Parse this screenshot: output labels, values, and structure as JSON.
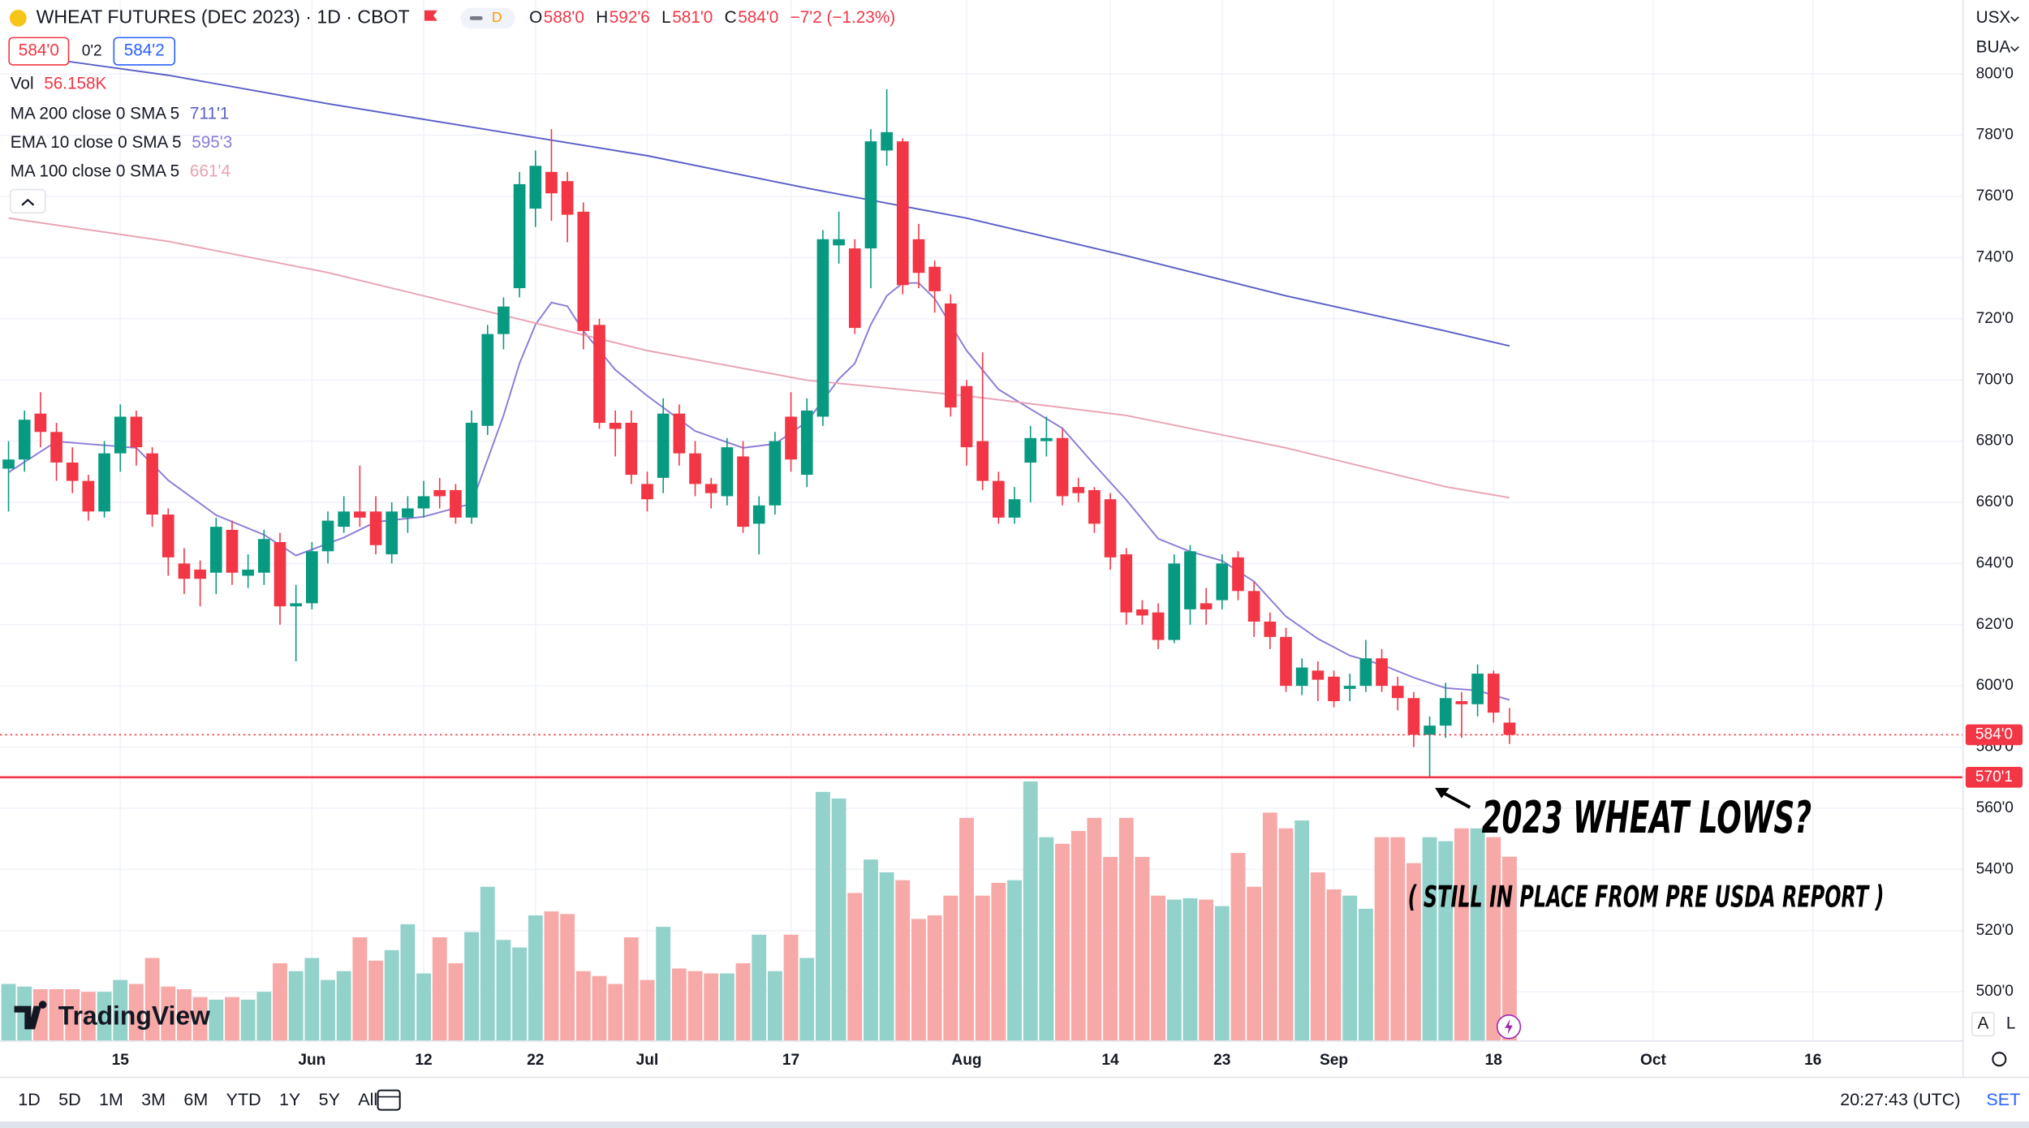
{
  "header": {
    "symbol": "WHEAT FUTURES (DEC 2023) · 1D · CBOT",
    "badge": "D",
    "ohlc": [
      {
        "key": "O",
        "value": "588'0"
      },
      {
        "key": "H",
        "value": "592'6"
      },
      {
        "key": "L",
        "value": "581'0"
      },
      {
        "key": "C",
        "value": "584'0"
      }
    ],
    "change": "−7'2 (−1.23%)",
    "bid": "584'0",
    "spread": "0'2",
    "ask": "584'2"
  },
  "units": [
    "USX",
    "BUA"
  ],
  "chart_data": {
    "type": "candlestick",
    "up_color": "#089981",
    "down_color": "#f23645",
    "ohlc": [
      [
        671,
        680,
        657,
        674
      ],
      [
        674,
        690,
        670,
        687
      ],
      [
        689,
        696,
        678,
        683
      ],
      [
        683,
        686,
        667,
        673
      ],
      [
        673,
        678,
        663,
        667
      ],
      [
        667,
        669,
        654,
        657
      ],
      [
        657,
        680,
        655,
        676
      ],
      [
        676,
        692,
        670,
        688
      ],
      [
        688,
        690,
        672,
        678
      ],
      [
        676,
        678,
        652,
        656
      ],
      [
        656,
        658,
        636,
        642
      ],
      [
        640,
        645,
        630,
        635
      ],
      [
        638,
        641,
        626,
        635
      ],
      [
        637,
        655,
        630,
        652
      ],
      [
        651,
        654,
        633,
        637
      ],
      [
        636,
        643,
        632,
        638
      ],
      [
        637,
        651,
        633,
        648
      ],
      [
        647,
        650,
        620,
        626
      ],
      [
        626,
        633,
        608,
        627
      ],
      [
        627,
        647,
        625,
        644
      ],
      [
        644,
        657,
        640,
        654
      ],
      [
        652,
        662,
        650,
        657
      ],
      [
        657,
        672,
        652,
        655
      ],
      [
        657,
        662,
        643,
        646
      ],
      [
        643,
        660,
        640,
        657
      ],
      [
        655,
        662,
        650,
        658
      ],
      [
        658,
        667,
        655,
        662
      ],
      [
        664,
        668,
        658,
        662
      ],
      [
        664,
        666,
        653,
        655
      ],
      [
        655,
        690,
        653,
        686
      ],
      [
        685,
        718,
        682,
        715
      ],
      [
        715,
        727,
        710,
        724
      ],
      [
        730,
        768,
        727,
        764
      ],
      [
        756,
        775,
        750,
        770
      ],
      [
        768,
        782,
        752,
        761
      ],
      [
        765,
        768,
        745,
        754
      ],
      [
        755,
        758,
        710,
        716
      ],
      [
        718,
        720,
        684,
        686
      ],
      [
        686,
        690,
        675,
        684
      ],
      [
        686,
        690,
        666,
        669
      ],
      [
        666,
        670,
        657,
        661
      ],
      [
        668,
        694,
        663,
        689
      ],
      [
        689,
        692,
        672,
        676
      ],
      [
        676,
        680,
        662,
        666
      ],
      [
        666,
        668,
        658,
        663
      ],
      [
        662,
        681,
        659,
        678
      ],
      [
        675,
        680,
        650,
        652
      ],
      [
        653,
        662,
        643,
        659
      ],
      [
        659,
        683,
        656,
        680
      ],
      [
        688,
        696,
        670,
        674
      ],
      [
        669,
        694,
        665,
        690
      ],
      [
        688,
        749,
        685,
        746
      ],
      [
        744,
        755,
        738,
        746
      ],
      [
        743,
        746,
        715,
        717
      ],
      [
        743,
        782,
        730,
        778
      ],
      [
        775,
        795,
        770,
        781
      ],
      [
        778,
        779,
        728,
        731
      ],
      [
        746,
        751,
        730,
        735
      ],
      [
        737,
        739,
        722,
        729
      ],
      [
        725,
        728,
        688,
        691
      ],
      [
        698,
        700,
        672,
        678
      ],
      [
        680,
        709,
        664,
        667
      ],
      [
        667,
        670,
        653,
        655
      ],
      [
        655,
        665,
        653,
        661
      ],
      [
        673,
        685,
        660,
        681
      ],
      [
        680,
        688,
        675,
        681
      ],
      [
        681,
        684,
        659,
        662
      ],
      [
        665,
        668,
        660,
        663
      ],
      [
        664,
        665,
        650,
        653
      ],
      [
        661,
        663,
        638,
        642
      ],
      [
        643,
        645,
        620,
        624
      ],
      [
        625,
        628,
        620,
        623
      ],
      [
        624,
        627,
        612,
        615
      ],
      [
        615,
        643,
        614,
        640
      ],
      [
        625,
        646,
        620,
        644
      ],
      [
        627,
        632,
        620,
        625
      ],
      [
        628,
        643,
        625,
        640
      ],
      [
        642,
        644,
        628,
        631
      ],
      [
        631,
        634,
        616,
        621
      ],
      [
        621,
        624,
        612,
        616
      ],
      [
        616,
        619,
        598,
        600
      ],
      [
        600,
        609,
        597,
        606
      ],
      [
        605,
        608,
        595,
        602
      ],
      [
        603,
        605,
        593,
        595
      ],
      [
        599,
        604,
        595,
        600
      ],
      [
        600,
        615,
        598,
        609
      ],
      [
        609,
        612,
        598,
        600
      ],
      [
        600,
        603,
        592,
        596
      ],
      [
        596,
        598,
        580,
        584
      ],
      [
        584,
        590,
        570.125,
        587
      ],
      [
        587,
        601,
        583,
        596
      ],
      [
        595,
        598,
        583,
        594
      ],
      [
        594,
        607,
        590,
        604
      ],
      [
        604,
        605,
        588,
        591.25
      ],
      [
        588,
        592.75,
        581,
        584
      ]
    ],
    "volume": {
      "name": "Vol",
      "legend_value": "56.158K",
      "up_color": "#92d2cb",
      "down_color": "#f7a9a7",
      "values": [
        17.4,
        16.6,
        15.8,
        15.8,
        15.8,
        15.0,
        15.0,
        18.6,
        17.4,
        25.3,
        16.6,
        15.8,
        13.4,
        12.6,
        13.4,
        12.6,
        15.0,
        23.7,
        21.3,
        25.3,
        18.6,
        21.3,
        31.6,
        24.5,
        27.7,
        35.6,
        20.6,
        31.6,
        23.7,
        33.2,
        47.0,
        30.8,
        28.5,
        38.3,
        39.5,
        38.7,
        21.3,
        19.8,
        17.4,
        31.6,
        18.6,
        34.8,
        22.1,
        21.3,
        20.6,
        20.6,
        23.7,
        32.4,
        21.3,
        32.4,
        25.3,
        75.9,
        73.9,
        45.1,
        55.3,
        51.4,
        49.0,
        37.2,
        38.3,
        44.3,
        68.0,
        44.3,
        48.2,
        49.0,
        79.1,
        62.1,
        60.1,
        64.0,
        68.0,
        56.1,
        68.0,
        56.1,
        44.3,
        43.1,
        43.5,
        43.1,
        41.1,
        57.3,
        47.0,
        69.6,
        64.8,
        67.2,
        51.4,
        46.2,
        44.3,
        40.3,
        62.1,
        62.1,
        54.2,
        62.1,
        60.9,
        64.8,
        64.8,
        62.1,
        56.158
      ]
    },
    "series": [
      {
        "name": "MA 200 close 0 SMA 5",
        "legend_value": "711'1",
        "color": "#5b5fc7",
        "x": [
          0,
          10,
          20,
          30,
          40,
          50,
          60,
          70,
          80,
          90,
          94
        ],
        "values": [
          806.8,
          799.6,
          790.3,
          781.8,
          773.3,
          762.7,
          752.9,
          740.6,
          727.5,
          716.0,
          711.125
        ]
      },
      {
        "name": "EMA 10 close 0 SMA 5",
        "legend_value": "595'3",
        "color": "#8c7ad6",
        "x": [
          0,
          3,
          8,
          10,
          13,
          16,
          18,
          21,
          23,
          26,
          29,
          31,
          32,
          33,
          34,
          35,
          36,
          38,
          40,
          43,
          46,
          48,
          50,
          52,
          53,
          54,
          55,
          56,
          57,
          58,
          60,
          62,
          64,
          66,
          68,
          70,
          72,
          74,
          76,
          78,
          80,
          82,
          84,
          86,
          88,
          90,
          92,
          94
        ],
        "values": [
          669.8,
          679.9,
          677.8,
          667.2,
          655.8,
          649.4,
          642.6,
          648.5,
          653.6,
          655.3,
          659.6,
          688.4,
          705.4,
          718.1,
          725.3,
          724.1,
          716.0,
          703.3,
          694.8,
          683.3,
          677.8,
          679.1,
          686.3,
          700.3,
          705.4,
          718.1,
          727.5,
          731.7,
          731.7,
          726.6,
          709.6,
          696.9,
          690.5,
          684.2,
          672.3,
          660.8,
          648.1,
          643.9,
          640.9,
          634.1,
          622.7,
          615.4,
          609.9,
          606.9,
          602.7,
          599.3,
          598.5,
          595.375
        ]
      },
      {
        "name": "MA 100 close 0 SMA 5",
        "legend_value": "661'4",
        "color": "#e8a3b3",
        "x": [
          0,
          10,
          20,
          30,
          40,
          50,
          60,
          70,
          80,
          90,
          94
        ],
        "values": [
          752.9,
          745.3,
          735.1,
          722.4,
          709.6,
          699.9,
          694.8,
          688.4,
          677.8,
          665.1,
          661.5
        ]
      }
    ],
    "xlim": [
      -0.535,
      122.4
    ],
    "xticks": [
      {
        "value": 7,
        "label": "15"
      },
      {
        "value": 19,
        "label": "Jun"
      },
      {
        "value": 26,
        "label": "12"
      },
      {
        "value": 33,
        "label": "22"
      },
      {
        "value": 40,
        "label": "Jul"
      },
      {
        "value": 49,
        "label": "17"
      },
      {
        "value": 60,
        "label": "Aug"
      },
      {
        "value": 69,
        "label": "14"
      },
      {
        "value": 76,
        "label": "23"
      },
      {
        "value": 83,
        "label": "Sep"
      },
      {
        "value": 93,
        "label": "18"
      },
      {
        "value": 103,
        "label": "Oct"
      },
      {
        "value": 113,
        "label": "16"
      }
    ],
    "ylim": [
      483.9,
      824.2
    ],
    "yticks": [
      {
        "value": 500,
        "label": "500'0"
      },
      {
        "value": 520,
        "label": "520'0"
      },
      {
        "value": 540,
        "label": "540'0"
      },
      {
        "value": 560,
        "label": "560'0"
      },
      {
        "value": 580,
        "label": "580'0"
      },
      {
        "value": 600,
        "label": "600'0"
      },
      {
        "value": 620,
        "label": "620'0"
      },
      {
        "value": 640,
        "label": "640'0"
      },
      {
        "value": 660,
        "label": "660'0"
      },
      {
        "value": 680,
        "label": "680'0"
      },
      {
        "value": 700,
        "label": "700'0"
      },
      {
        "value": 720,
        "label": "720'0"
      },
      {
        "value": 740,
        "label": "740'0"
      },
      {
        "value": 760,
        "label": "760'0"
      },
      {
        "value": 780,
        "label": "780'0"
      },
      {
        "value": 800,
        "label": "800'0"
      }
    ],
    "grid": true,
    "price_lines": [
      {
        "value": 584,
        "label": "584'0",
        "color": "#f23645",
        "style": "dotted"
      },
      {
        "value": 570.125,
        "label": "570'1",
        "color": "#f23645",
        "style": "solid"
      }
    ],
    "annotations": [
      "2023 WHEAT LOWS?",
      "( STILL IN PLACE FROM PRE USDA REPORT )"
    ]
  },
  "watermark": "TradingView",
  "toolbar": {
    "ranges": [
      "1D",
      "5D",
      "1M",
      "3M",
      "6M",
      "YTD",
      "1Y",
      "5Y",
      "All"
    ],
    "clock": "20:27:43 (UTC)",
    "session": "SET"
  },
  "scale_buttons": [
    "A",
    "L"
  ]
}
